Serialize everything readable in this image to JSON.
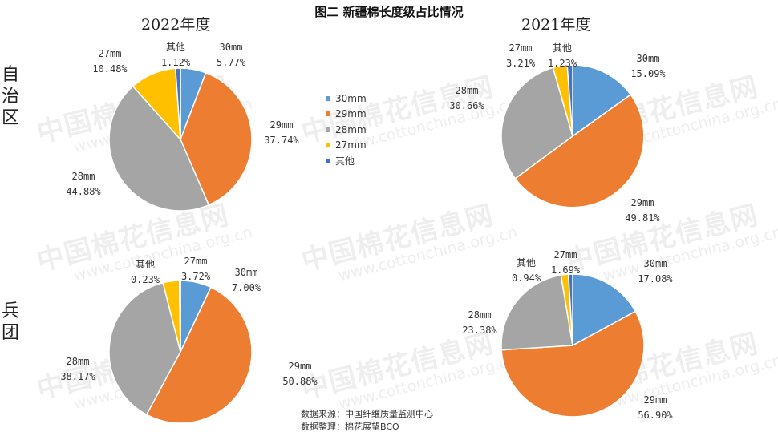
{
  "title": "图二  新疆棉长度级占比情况",
  "column_headers": [
    "2022年度",
    "2021年度"
  ],
  "row_headers": [
    "自治区",
    "兵团"
  ],
  "watermark": {
    "cn": "中国棉花信息网",
    "url": "www.cottonchina.org.cn"
  },
  "source_lines": [
    "数据来源：中国纤维质量监测中心",
    "数据整理：棉花展望BCO"
  ],
  "legend": [
    {
      "label": "30mm",
      "color": "#5B9BD5"
    },
    {
      "label": "29mm",
      "color": "#ED7D31"
    },
    {
      "label": "28mm",
      "color": "#A5A5A5"
    },
    {
      "label": "27mm",
      "color": "#FFC000"
    },
    {
      "label": "其他",
      "color": "#4472C4"
    }
  ],
  "chart_data": [
    {
      "type": "pie",
      "title": "2022年度",
      "row": "自治区",
      "categories": [
        "30mm",
        "29mm",
        "28mm",
        "27mm",
        "其他"
      ],
      "values": [
        5.77,
        37.74,
        44.88,
        10.48,
        1.12
      ],
      "value_labels": [
        "5.77%",
        "37.74%",
        "44.88%",
        "10.48%",
        "1.12%"
      ],
      "colors": [
        "#5B9BD5",
        "#ED7D31",
        "#A5A5A5",
        "#FFC000",
        "#4472C4"
      ]
    },
    {
      "type": "pie",
      "title": "2021年度",
      "row": "自治区",
      "categories": [
        "30mm",
        "29mm",
        "28mm",
        "27mm",
        "其他"
      ],
      "values": [
        15.09,
        49.81,
        30.66,
        3.21,
        1.23
      ],
      "value_labels": [
        "15.09%",
        "49.81%",
        "30.66%",
        "3.21%",
        "1.23%"
      ],
      "colors": [
        "#5B9BD5",
        "#ED7D31",
        "#A5A5A5",
        "#FFC000",
        "#4472C4"
      ]
    },
    {
      "type": "pie",
      "title": "2022年度",
      "row": "兵团",
      "categories": [
        "30mm",
        "29mm",
        "28mm",
        "27mm",
        "其他"
      ],
      "values": [
        7.0,
        50.88,
        38.17,
        3.72,
        0.23
      ],
      "value_labels": [
        "7.00%",
        "50.88%",
        "38.17%",
        "3.72%",
        "0.23%"
      ],
      "colors": [
        "#5B9BD5",
        "#ED7D31",
        "#A5A5A5",
        "#FFC000",
        "#4472C4"
      ]
    },
    {
      "type": "pie",
      "title": "2021年度",
      "row": "兵团",
      "categories": [
        "30mm",
        "29mm",
        "28mm",
        "27mm",
        "其他"
      ],
      "values": [
        17.08,
        56.9,
        23.38,
        1.69,
        0.94
      ],
      "value_labels": [
        "17.08%",
        "56.90%",
        "23.38%",
        "1.69%",
        "0.94%"
      ],
      "colors": [
        "#5B9BD5",
        "#ED7D31",
        "#A5A5A5",
        "#FFC000",
        "#4472C4"
      ]
    }
  ]
}
